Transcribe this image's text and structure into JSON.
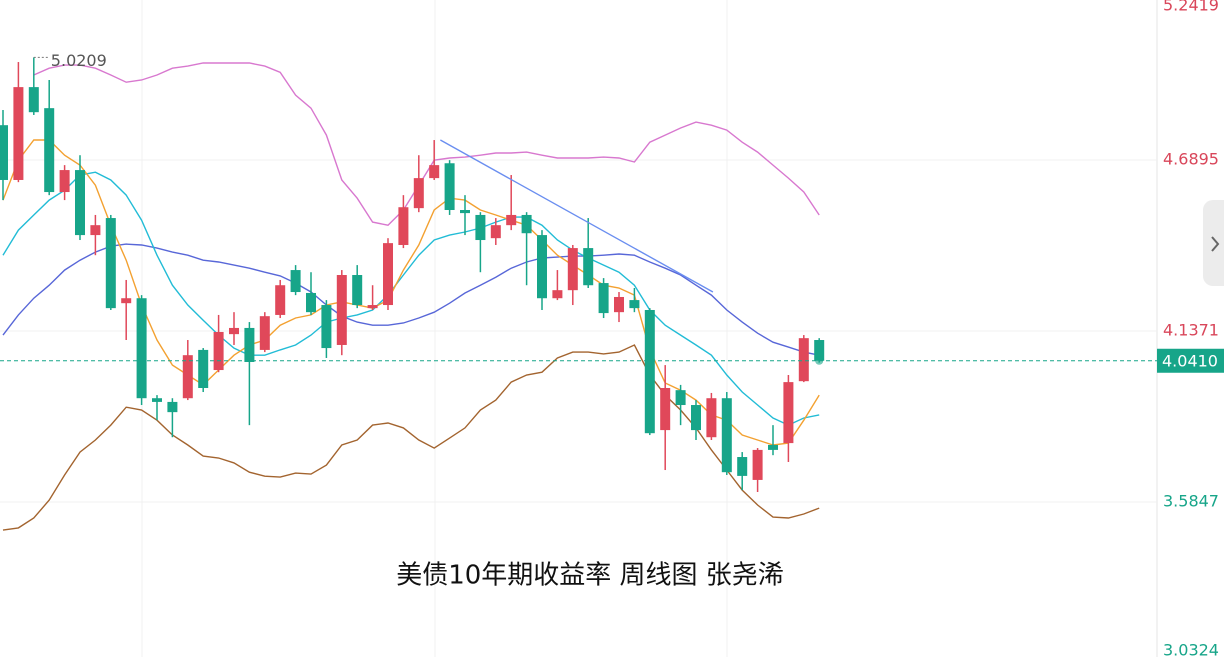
{
  "chart_data": {
    "type": "candlestick",
    "title": "美债10年期收益率 周线图 张尧浠",
    "up_color": "#e0485a",
    "down_color": "#17a589",
    "ylim": [
      3.084,
      5.2064
    ],
    "yticks": [
      5.2419,
      4.6895,
      4.1371,
      3.5847,
      3.0324
    ],
    "open": [
      4.802,
      4.625,
      4.925,
      4.857,
      4.586,
      4.657,
      4.447,
      4.502,
      4.227,
      4.243,
      3.92,
      3.908,
      3.92,
      4.076,
      4.011,
      4.127,
      4.147,
      4.076,
      4.189,
      4.334,
      4.26,
      4.221,
      4.092,
      4.318,
      4.211,
      4.221,
      4.415,
      4.534,
      4.631,
      4.679,
      4.528,
      4.512,
      4.437,
      4.479,
      4.512,
      4.447,
      4.243,
      4.269,
      4.405,
      4.292,
      4.198,
      4.237,
      4.205,
      3.817,
      3.946,
      3.898,
      3.794,
      3.92,
      3.73,
      3.656,
      3.769,
      3.775,
      3.975,
      4.108
    ],
    "high": [
      4.851,
      5.006,
      5.0209,
      4.948,
      4.673,
      4.705,
      4.512,
      4.512,
      4.302,
      4.253,
      3.93,
      3.92,
      4.108,
      4.082,
      4.189,
      4.198,
      4.166,
      4.198,
      4.302,
      4.35,
      4.327,
      4.237,
      4.334,
      4.35,
      4.285,
      4.437,
      4.576,
      4.705,
      4.754,
      4.689,
      4.576,
      4.521,
      4.502,
      4.641,
      4.521,
      4.463,
      4.334,
      4.415,
      4.502,
      4.308,
      4.263,
      4.276,
      4.211,
      4.027,
      3.963,
      3.914,
      3.937,
      3.94,
      3.746,
      3.759,
      3.833,
      3.995,
      4.124,
      4.114
    ],
    "low": [
      4.56,
      4.618,
      4.835,
      4.576,
      4.56,
      4.431,
      4.382,
      4.205,
      4.108,
      3.898,
      3.849,
      3.794,
      3.914,
      3.94,
      4.004,
      4.092,
      3.833,
      4.069,
      4.179,
      4.253,
      4.189,
      4.05,
      4.059,
      4.211,
      4.205,
      4.205,
      4.405,
      4.521,
      4.625,
      4.512,
      4.447,
      4.327,
      4.415,
      4.463,
      4.285,
      4.205,
      4.237,
      4.221,
      4.276,
      4.179,
      4.166,
      4.198,
      3.801,
      3.688,
      3.833,
      3.785,
      3.785,
      3.672,
      3.623,
      3.617,
      3.736,
      3.714,
      3.972,
      4.035
    ],
    "close": [
      4.625,
      4.925,
      4.844,
      4.586,
      4.657,
      4.447,
      4.479,
      4.211,
      4.243,
      3.92,
      3.908,
      3.875,
      4.059,
      3.953,
      4.134,
      4.147,
      4.037,
      4.185,
      4.285,
      4.263,
      4.198,
      4.082,
      4.318,
      4.221,
      4.221,
      4.421,
      4.537,
      4.631,
      4.673,
      4.528,
      4.518,
      4.431,
      4.479,
      4.512,
      4.453,
      4.243,
      4.269,
      4.405,
      4.285,
      4.195,
      4.247,
      4.211,
      3.807,
      3.953,
      3.898,
      3.817,
      3.92,
      3.681,
      3.669,
      3.753,
      3.753,
      3.972,
      4.114,
      4.041
    ],
    "overlays": [
      {
        "color": "#d878cf",
        "values": [
          null,
          null,
          4.964,
          4.986,
          4.996,
          4.996,
          4.986,
          4.964,
          4.941,
          4.948,
          4.964,
          4.986,
          4.993,
          5.003,
          5.003,
          5.003,
          5.003,
          4.993,
          4.973,
          4.899,
          4.857,
          4.77,
          4.625,
          4.566,
          4.489,
          4.479,
          4.528,
          4.608,
          4.689,
          4.696,
          4.699,
          4.705,
          4.712,
          4.712,
          4.715,
          4.705,
          4.696,
          4.696,
          4.696,
          4.699,
          4.696,
          4.683,
          4.747,
          4.77,
          4.793,
          4.812,
          4.802,
          4.786,
          4.747,
          4.715,
          4.673,
          4.631,
          4.586,
          4.512
        ]
      },
      {
        "color": "#a3642f",
        "values": [
          3.494,
          3.501,
          3.533,
          3.591,
          3.672,
          3.746,
          3.785,
          3.833,
          3.891,
          3.882,
          3.849,
          3.801,
          3.769,
          3.733,
          3.727,
          3.711,
          3.681,
          3.668,
          3.665,
          3.678,
          3.675,
          3.704,
          3.769,
          3.785,
          3.833,
          3.84,
          3.824,
          3.785,
          3.759,
          3.791,
          3.824,
          3.882,
          3.914,
          3.972,
          3.995,
          4.004,
          4.05,
          4.069,
          4.069,
          4.063,
          4.069,
          4.092,
          3.995,
          3.93,
          3.882,
          3.824,
          3.753,
          3.688,
          3.623,
          3.575,
          3.536,
          3.533,
          3.546,
          3.565
        ]
      },
      {
        "color": "#5867d8",
        "values": [
          4.124,
          4.189,
          4.243,
          4.285,
          4.334,
          4.366,
          4.392,
          4.411,
          4.418,
          4.415,
          4.405,
          4.392,
          4.382,
          4.366,
          4.36,
          4.35,
          4.34,
          4.327,
          4.315,
          4.292,
          4.263,
          4.221,
          4.185,
          4.166,
          4.156,
          4.156,
          4.163,
          4.179,
          4.198,
          4.227,
          4.26,
          4.285,
          4.311,
          4.34,
          4.36,
          4.373,
          4.376,
          4.379,
          4.379,
          4.382,
          4.386,
          4.382,
          4.36,
          4.34,
          4.318,
          4.285,
          4.253,
          4.205,
          4.166,
          4.13,
          4.101,
          4.085,
          4.069,
          4.059
        ]
      },
      {
        "color": "#22bcd6",
        "values": [
          4.382,
          4.463,
          4.512,
          4.56,
          4.592,
          4.641,
          4.65,
          4.625,
          4.576,
          4.495,
          4.382,
          4.285,
          4.221,
          4.172,
          4.124,
          4.082,
          4.059,
          4.059,
          4.076,
          4.092,
          4.124,
          4.166,
          4.179,
          4.189,
          4.205,
          4.253,
          4.318,
          4.382,
          4.431,
          4.447,
          4.457,
          4.47,
          4.489,
          4.505,
          4.505,
          4.479,
          4.431,
          4.398,
          4.373,
          4.35,
          4.327,
          4.285,
          4.205,
          4.156,
          4.124,
          4.092,
          4.059,
          3.995,
          3.94,
          3.898,
          3.856,
          3.833,
          3.856,
          3.866
        ]
      },
      {
        "color": "#f3a131",
        "values": [
          4.56,
          4.689,
          4.754,
          4.754,
          4.705,
          4.673,
          4.608,
          4.479,
          4.366,
          4.221,
          4.108,
          4.027,
          3.995,
          3.963,
          4.011,
          4.059,
          4.092,
          4.108,
          4.156,
          4.179,
          4.189,
          4.221,
          4.231,
          4.221,
          4.211,
          4.237,
          4.334,
          4.415,
          4.528,
          4.566,
          4.56,
          4.528,
          4.512,
          4.495,
          4.479,
          4.431,
          4.382,
          4.35,
          4.318,
          4.285,
          4.276,
          4.253,
          4.076,
          3.969,
          3.946,
          3.914,
          3.866,
          3.849,
          3.801,
          3.785,
          3.769,
          3.775,
          3.849,
          3.93
        ]
      }
    ],
    "trend_line": {
      "color": "#6a8ef0",
      "x": [
        28.4,
        46.1
      ],
      "values": [
        4.754,
        4.263
      ]
    },
    "annotations": [
      {
        "text": "5.0209",
        "value": 5.0209
      }
    ],
    "last_price": {
      "value": 4.041,
      "label": "4.0410"
    }
  }
}
